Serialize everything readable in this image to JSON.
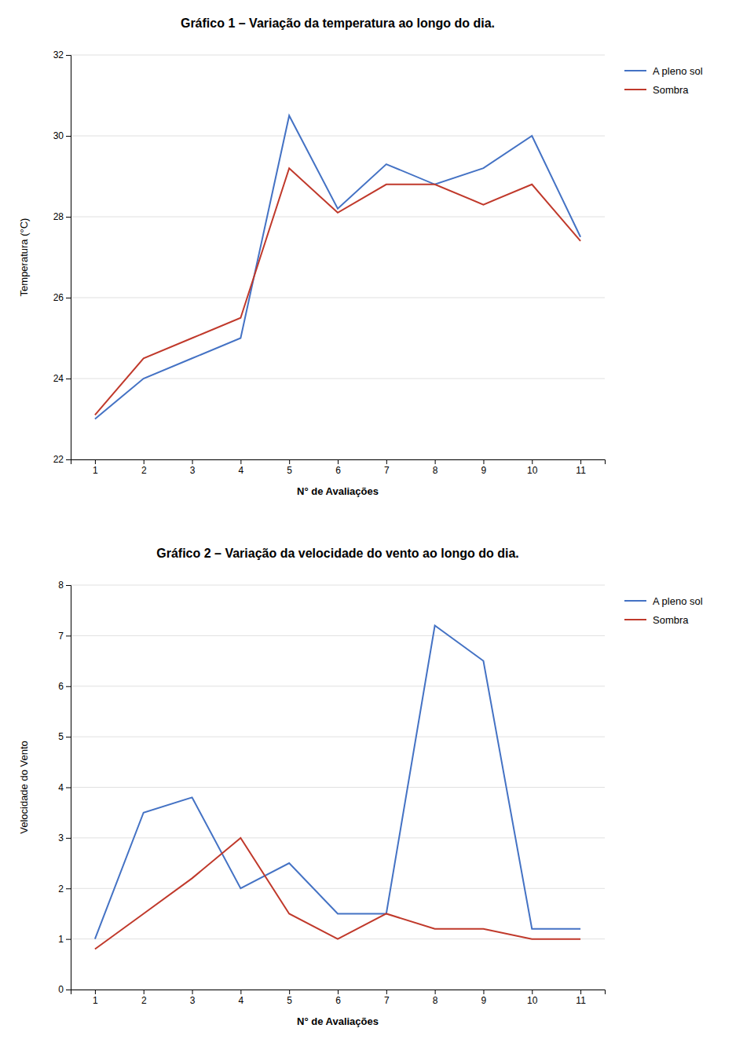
{
  "chart_data": [
    {
      "type": "line",
      "title": "Gráfico 1 – Variação da temperatura ao longo do dia.",
      "xlabel": "N° de Avaliações",
      "ylabel": "Temperatura (°C)",
      "x": [
        1,
        2,
        3,
        4,
        5,
        6,
        7,
        8,
        9,
        10,
        11
      ],
      "xlim": [
        0.5,
        11.5
      ],
      "xticks": [
        1,
        2,
        3,
        4,
        5,
        6,
        7,
        8,
        9,
        10,
        11
      ],
      "ylim": [
        22,
        32
      ],
      "yticks": [
        22,
        24,
        26,
        28,
        30,
        32
      ],
      "grid": true,
      "legend": "right",
      "series": [
        {
          "name": "A pleno sol",
          "color": "#4472C4",
          "values": [
            23.0,
            24.0,
            24.5,
            25.0,
            30.5,
            28.2,
            29.3,
            28.8,
            29.2,
            30.0,
            27.5
          ]
        },
        {
          "name": "Sombra",
          "color": "#C0392B",
          "values": [
            23.1,
            24.5,
            25.0,
            25.5,
            29.2,
            28.1,
            28.8,
            28.8,
            28.3,
            28.8,
            27.4
          ]
        }
      ]
    },
    {
      "type": "line",
      "title": "Gráfico 2 – Variação da velocidade do vento ao longo do dia.",
      "xlabel": "N° de Avaliações",
      "ylabel": "Velocidade do Vento",
      "x": [
        1,
        2,
        3,
        4,
        5,
        6,
        7,
        8,
        9,
        10,
        11
      ],
      "xlim": [
        0.5,
        11.5
      ],
      "xticks": [
        1,
        2,
        3,
        4,
        5,
        6,
        7,
        8,
        9,
        10,
        11
      ],
      "ylim": [
        0,
        8
      ],
      "yticks": [
        0,
        1,
        2,
        3,
        4,
        5,
        6,
        7,
        8
      ],
      "grid": true,
      "legend": "right",
      "series": [
        {
          "name": "A pleno sol",
          "color": "#4472C4",
          "values": [
            1.0,
            3.5,
            3.8,
            2.0,
            2.5,
            1.5,
            1.5,
            7.2,
            6.5,
            1.2,
            1.2
          ]
        },
        {
          "name": "Sombra",
          "color": "#C0392B",
          "values": [
            0.8,
            1.5,
            2.2,
            3.0,
            1.5,
            1.0,
            1.5,
            1.2,
            1.2,
            1.0,
            1.0
          ]
        }
      ]
    }
  ]
}
